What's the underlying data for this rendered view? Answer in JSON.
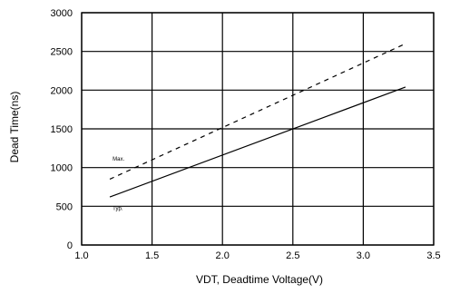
{
  "chart_data": {
    "type": "line",
    "title": "",
    "xlabel": "VDT, Deadtime  Voltage(V)",
    "ylabel": "Dead Time(ns)",
    "xlim": [
      1.0,
      3.5
    ],
    "ylim": [
      0,
      3000
    ],
    "xticks": [
      1.0,
      1.5,
      2.0,
      2.5,
      3.0,
      3.5
    ],
    "yticks": [
      0,
      500,
      1000,
      1500,
      2000,
      2500,
      3000
    ],
    "grid": true,
    "legend": "none",
    "series": [
      {
        "name": "Max.",
        "style": "dashed",
        "color": "#000000",
        "x": [
          1.2,
          3.3
        ],
        "y": [
          850,
          2600
        ]
      },
      {
        "name": "Typ.",
        "style": "solid",
        "color": "#000000",
        "x": [
          1.2,
          3.3
        ],
        "y": [
          620,
          2040
        ]
      }
    ],
    "annotations": [
      {
        "text": "Max.",
        "x": 1.22,
        "y": 1090
      },
      {
        "text": "Typ.",
        "x": 1.22,
        "y": 450
      }
    ]
  }
}
